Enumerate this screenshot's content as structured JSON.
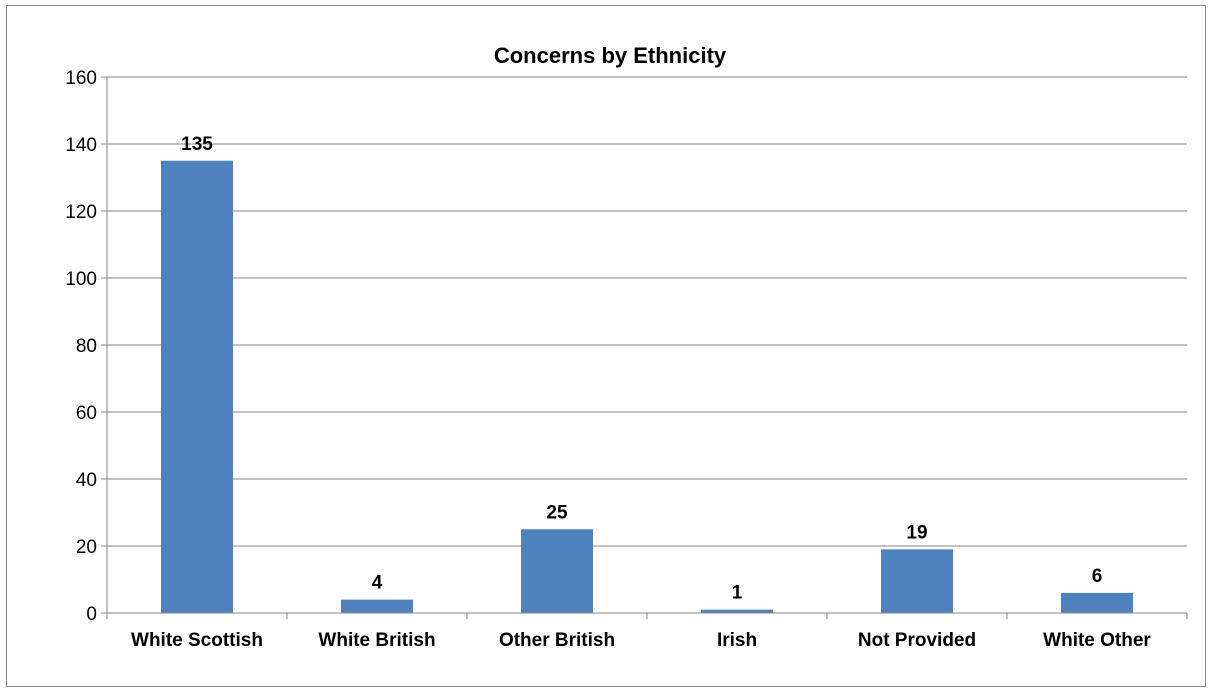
{
  "chart_data": {
    "type": "bar",
    "title": "Concerns by Ethnicity",
    "categories": [
      "White Scottish",
      "White British",
      "Other British",
      "Irish",
      "Not Provided",
      "White Other"
    ],
    "values": [
      135,
      4,
      25,
      1,
      19,
      6
    ],
    "data_labels": [
      "135",
      "4",
      "25",
      "1",
      "19",
      "6"
    ],
    "xlabel": "",
    "ylabel": "",
    "ylim": [
      0,
      160
    ],
    "yticks": [
      0,
      20,
      40,
      60,
      80,
      100,
      120,
      140,
      160
    ],
    "ytick_labels": [
      "0",
      "20",
      "40",
      "60",
      "80",
      "100",
      "120",
      "140",
      "160"
    ],
    "grid": true,
    "legend": "none",
    "bar_color": "#4F81BD"
  }
}
